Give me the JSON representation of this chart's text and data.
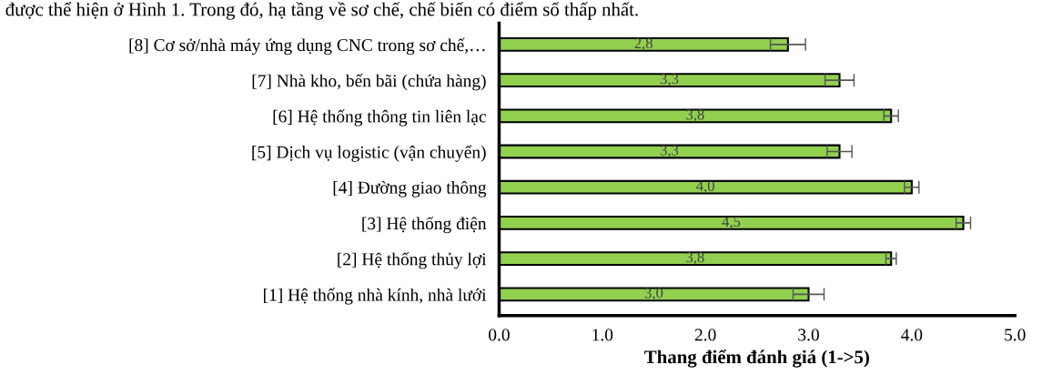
{
  "chart_data": {
    "type": "bar",
    "orientation": "horizontal",
    "xlabel": "Thang điểm đánh giá (1->5)",
    "categories": [
      "[8] Cơ sở/nhà máy ứng dụng CNC trong sơ chế,…",
      "[7] Nhà kho, bến bãi (chứa hàng)",
      "[6] Hệ thống thông tin liên lạc",
      "[5] Dịch vụ logistic (vận chuyển)",
      "[4] Đường giao thông",
      "[3] Hệ thống điện",
      "[2] Hệ thống thủy lợi",
      "[1] Hệ thống nhà kính, nhà lưới"
    ],
    "values": [
      2.8,
      3.3,
      3.8,
      3.3,
      4.0,
      4.5,
      3.8,
      3.0
    ],
    "errors": [
      0.17,
      0.14,
      0.07,
      0.12,
      0.07,
      0.07,
      0.05,
      0.15
    ],
    "value_labels": [
      "2,8",
      "3,3",
      "3,8",
      "3,3",
      "4,0",
      "4,5",
      "3,8",
      "3,0"
    ],
    "color": "#92d050",
    "xlim": [
      0,
      5
    ],
    "xticks": [
      {
        "value": 0,
        "label": "0.0"
      },
      {
        "value": 1,
        "label": "1.0"
      },
      {
        "value": 2,
        "label": "2.0"
      },
      {
        "value": 3,
        "label": "3.0"
      },
      {
        "value": 4,
        "label": "4.0"
      },
      {
        "value": 5,
        "label": "5.0"
      }
    ],
    "grid": false,
    "annotations": [
      "được thể hiện ở Hình 1. Trong đó, hạ tầng về sơ chế, chế biến có điểm số thấp nhất."
    ]
  }
}
